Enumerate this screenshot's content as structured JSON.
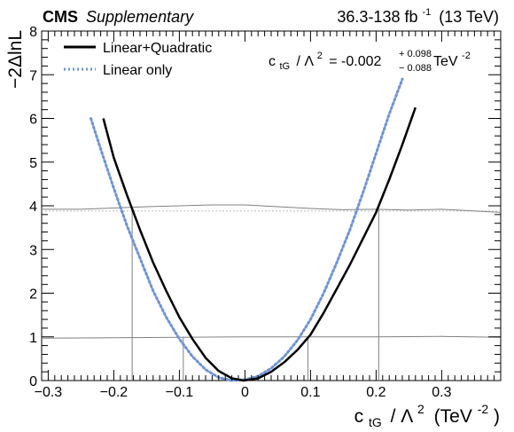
{
  "header": {
    "experiment": "CMS",
    "status": "Supplementary",
    "lumi_value": "36.3-138 fb",
    "lumi_exp": "-1",
    "energy": "(13 TeV)"
  },
  "legend": {
    "items": [
      {
        "label": "Linear+Quadratic",
        "color": "#000000",
        "style": "solid"
      },
      {
        "label": "Linear only",
        "color": "#6f93d3",
        "style": "dotted"
      }
    ]
  },
  "result": {
    "coef": "c",
    "coef_sub": "tG",
    "over": "/ Λ",
    "over_sup": "2",
    "eq": "= -0.002",
    "up": "+ 0.098",
    "down": "− 0.088",
    "unit": "TeV",
    "unit_sup": "-2"
  },
  "axes": {
    "ylabel": "−2ΔlnL",
    "xlabel_coef": "c",
    "xlabel_sub": "tG",
    "xlabel_rest": "/ Λ",
    "xlabel_sup": "2",
    "xlabel_unit": "(TeV",
    "xlabel_unit_sup": "-2",
    "xlabel_close": ")"
  },
  "chart_data": {
    "type": "line",
    "xlim": [
      -0.31,
      0.39
    ],
    "ylim": [
      0,
      8
    ],
    "x_ticks": [
      -0.3,
      -0.2,
      -0.1,
      0,
      0.1,
      0.2,
      0.3
    ],
    "x_tick_labels": [
      "−0.3",
      "−0.2",
      "−0.1",
      "0",
      "0.1",
      "0.2",
      "0.3"
    ],
    "y_ticks": [
      0,
      1,
      2,
      3,
      4,
      5,
      6,
      7,
      8
    ],
    "y_tick_labels": [
      "0",
      "1",
      "2",
      "3",
      "4",
      "5",
      "6",
      "7",
      "8"
    ],
    "series": [
      {
        "name": "Linear+Quadratic",
        "x": [
          -0.216,
          -0.2,
          -0.18,
          -0.16,
          -0.14,
          -0.12,
          -0.1,
          -0.08,
          -0.06,
          -0.04,
          -0.02,
          -0.002,
          0.02,
          0.04,
          0.06,
          0.08,
          0.1,
          0.12,
          0.14,
          0.16,
          0.18,
          0.2,
          0.22,
          0.24,
          0.26
        ],
        "y": [
          6.0,
          5.1,
          4.25,
          3.45,
          2.7,
          2.05,
          1.45,
          0.95,
          0.52,
          0.22,
          0.05,
          0.0,
          0.05,
          0.2,
          0.42,
          0.7,
          1.05,
          1.55,
          2.1,
          2.65,
          3.25,
          3.85,
          4.6,
          5.4,
          6.25
        ]
      },
      {
        "name": "Linear only",
        "x": [
          -0.235,
          -0.22,
          -0.2,
          -0.18,
          -0.16,
          -0.14,
          -0.12,
          -0.1,
          -0.08,
          -0.06,
          -0.04,
          -0.02,
          0.0,
          0.02,
          0.04,
          0.06,
          0.08,
          0.1,
          0.12,
          0.14,
          0.16,
          0.18,
          0.2,
          0.22,
          0.24
        ],
        "y": [
          6.0,
          5.3,
          4.4,
          3.55,
          2.8,
          2.05,
          1.45,
          0.95,
          0.55,
          0.25,
          0.07,
          0.0,
          0.02,
          0.1,
          0.28,
          0.55,
          0.92,
          1.4,
          2.0,
          2.7,
          3.45,
          4.3,
          5.2,
          6.1,
          6.9
        ]
      }
    ],
    "threshold_1sigma": {
      "x": [
        -0.31,
        -0.2,
        -0.1,
        0.0,
        0.1,
        0.2,
        0.3,
        0.39
      ],
      "y": [
        0.97,
        0.98,
        0.99,
        1.0,
        1.0,
        1.0,
        1.01,
        0.99
      ]
    },
    "threshold_2sigma": {
      "x": [
        -0.31,
        -0.25,
        -0.2,
        -0.15,
        -0.1,
        -0.05,
        0.0,
        0.05,
        0.1,
        0.15,
        0.2,
        0.25,
        0.3,
        0.35,
        0.39
      ],
      "y": [
        3.92,
        3.92,
        3.95,
        3.98,
        4.0,
        4.02,
        4.02,
        3.98,
        3.94,
        3.91,
        3.92,
        3.9,
        3.92,
        3.88,
        3.85
      ]
    },
    "reference_level": 3.88,
    "interval_lines": [
      {
        "x": -0.172,
        "y": 3.9
      },
      {
        "x": -0.094,
        "y": 1.0
      },
      {
        "x": 0.096,
        "y": 1.0
      },
      {
        "x": 0.204,
        "y": 3.9
      }
    ],
    "colors": {
      "quad": "#000000",
      "linear": "#6f93d3",
      "threshold": "#808080",
      "reference": "#bbbbbb"
    }
  }
}
